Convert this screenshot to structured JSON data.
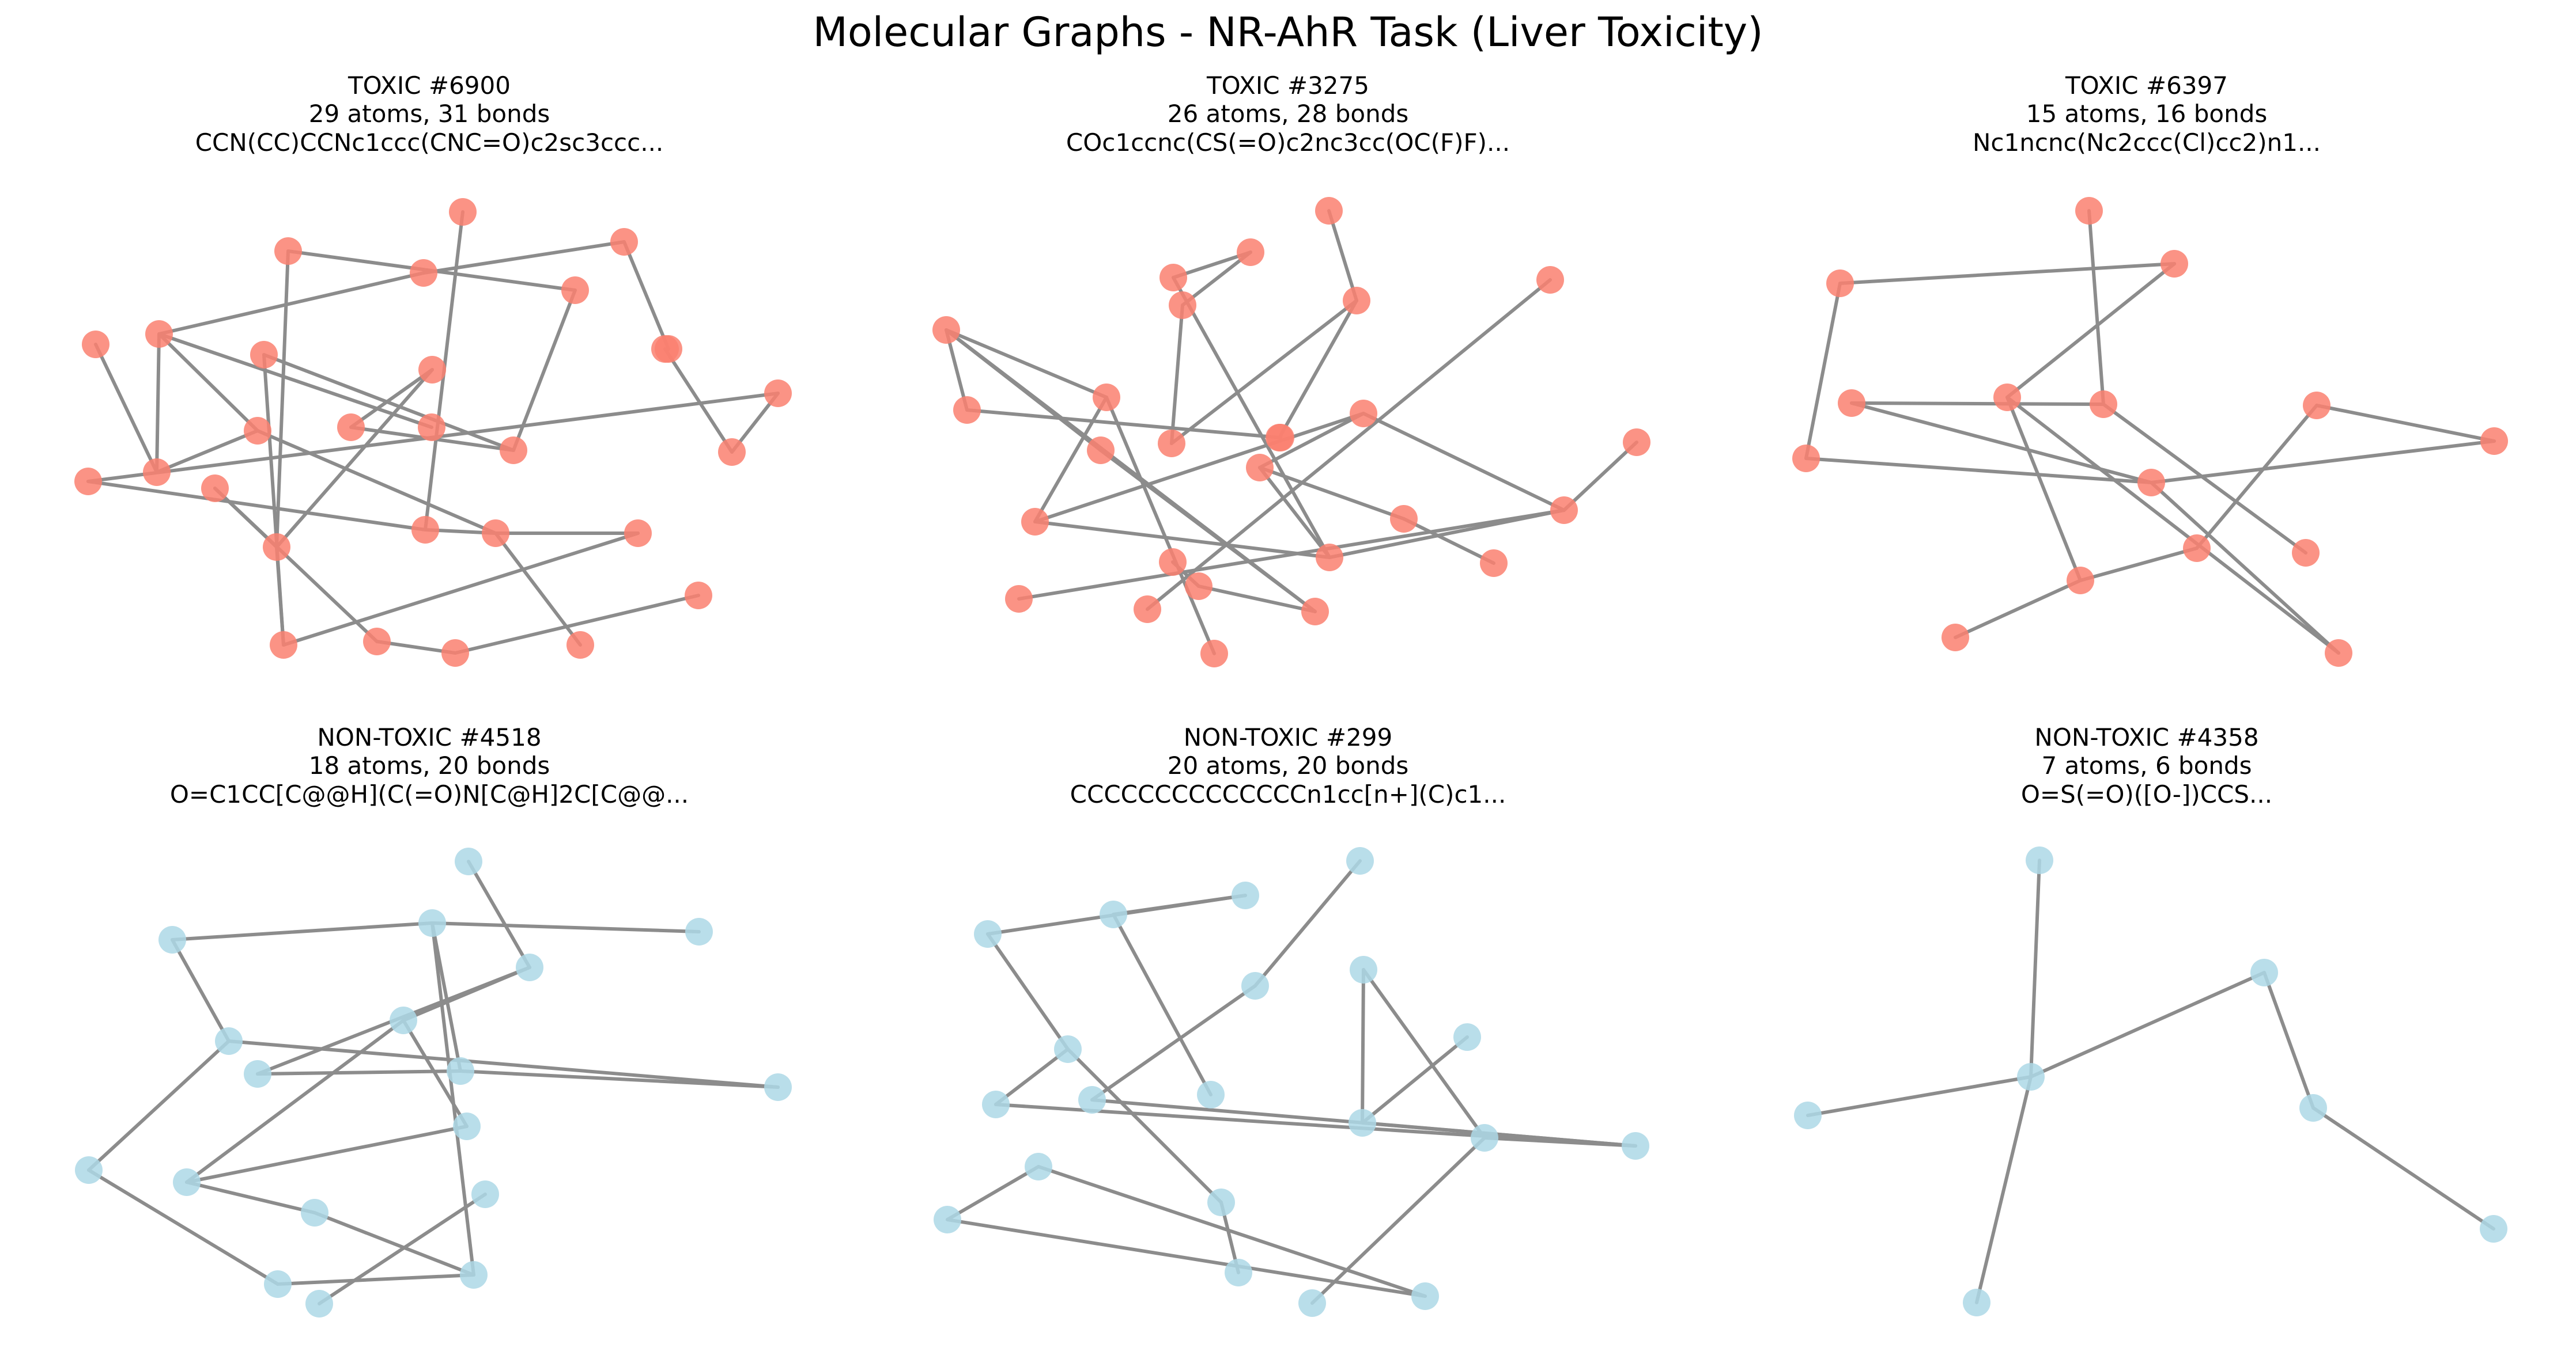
{
  "figure": {
    "title": "Molecular Graphs - NR-AhR Task (Liver Toxicity)",
    "edge_color": "#8c8c8c",
    "toxic_color": "#fa8070",
    "nontoxic_color": "#add8e6"
  },
  "panels": [
    {
      "label": "TOXIC #6900",
      "counts": "29 atoms, 31 bonds",
      "smiles": "CCN(CC)CCNc1ccc(CNC=O)c2sc3ccc...",
      "class": "toxic"
    },
    {
      "label": "TOXIC #3275",
      "counts": "26 atoms, 28 bonds",
      "smiles": "COc1ccnc(CS(=O)c2nc3cc(OC(F)F)...",
      "class": "toxic"
    },
    {
      "label": "TOXIC #6397",
      "counts": "15 atoms, 16 bonds",
      "smiles": "Nc1ncnc(Nc2ccc(Cl)cc2)n1...",
      "class": "toxic"
    },
    {
      "label": "NON-TOXIC #4518",
      "counts": "18 atoms, 20 bonds",
      "smiles": "O=C1CC[C@@H](C(=O)N[C@H]2C[C@@...",
      "class": "nontoxic"
    },
    {
      "label": "NON-TOXIC #299",
      "counts": "20 atoms, 20 bonds",
      "smiles": "CCCCCCCCCCCCCCn1cc[n+](C)c1...",
      "class": "nontoxic"
    },
    {
      "label": "NON-TOXIC #4358",
      "counts": "7 atoms, 6 bonds",
      "smiles": "O=S(=O)([O-])CCS...",
      "class": "nontoxic"
    }
  ]
}
